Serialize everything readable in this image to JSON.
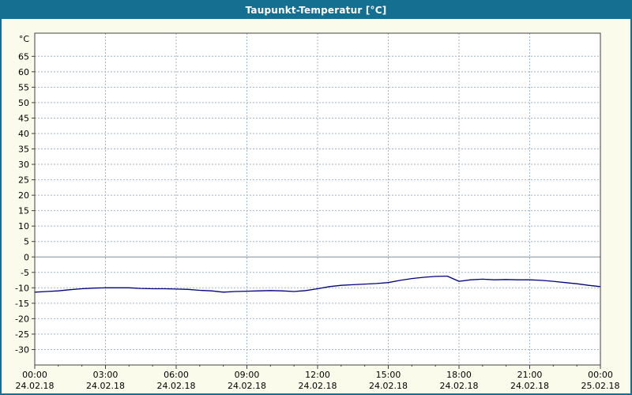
{
  "title": "Taupunkt-Temperatur [°C]",
  "colors": {
    "titlebar": "#156f91",
    "titlebar_text": "#ffffff",
    "window_background": "#fbfbec",
    "plot_background": "#ffffff",
    "grid": "#a3b4c2",
    "zero_line": "#7d8d99",
    "axis": "#404040",
    "series_line": "#000080",
    "label_text": "#000000"
  },
  "chart_data": {
    "type": "line",
    "title": "Taupunkt-Temperatur [°C]",
    "ylabel": "°C",
    "ylim": [
      -35,
      72.5
    ],
    "ytick_step": 5,
    "yticks": [
      65,
      60,
      55,
      50,
      45,
      40,
      35,
      30,
      25,
      20,
      15,
      10,
      5,
      0,
      -5,
      -10,
      -15,
      -20,
      -25,
      -30
    ],
    "grid": "dashed",
    "legend_position": "none",
    "x_hours_range": [
      0,
      24
    ],
    "xticks": [
      {
        "hour": 0,
        "time": "00:00",
        "date": "24.02.18"
      },
      {
        "hour": 3,
        "time": "03:00",
        "date": "24.02.18"
      },
      {
        "hour": 6,
        "time": "06:00",
        "date": "24.02.18"
      },
      {
        "hour": 9,
        "time": "09:00",
        "date": "24.02.18"
      },
      {
        "hour": 12,
        "time": "12:00",
        "date": "24.02.18"
      },
      {
        "hour": 15,
        "time": "15:00",
        "date": "24.02.18"
      },
      {
        "hour": 18,
        "time": "18:00",
        "date": "24.02.18"
      },
      {
        "hour": 21,
        "time": "21:00",
        "date": "24.02.18"
      },
      {
        "hour": 24,
        "time": "00:00",
        "date": "25.02.18"
      }
    ],
    "series": [
      {
        "name": "Taupunkt-Temperatur",
        "color": "#000080",
        "x": [
          0,
          0.5,
          1,
          1.5,
          2,
          2.5,
          3,
          3.5,
          4,
          4.5,
          5,
          5.5,
          6,
          6.5,
          7,
          7.5,
          8,
          8.5,
          9,
          9.5,
          10,
          10.5,
          11,
          11.5,
          12,
          12.5,
          13,
          13.5,
          14,
          14.5,
          15,
          15.5,
          16,
          16.5,
          17,
          17.5,
          18,
          18.5,
          19,
          19.5,
          20,
          20.5,
          21,
          21.5,
          22,
          22.5,
          23,
          23.5,
          24
        ],
        "y": [
          -11.4,
          -11.2,
          -11.0,
          -10.6,
          -10.3,
          -10.1,
          -10.0,
          -10.0,
          -10.0,
          -10.2,
          -10.3,
          -10.3,
          -10.4,
          -10.5,
          -10.8,
          -11.0,
          -11.4,
          -11.2,
          -11.1,
          -11.0,
          -10.9,
          -11.0,
          -11.2,
          -10.9,
          -10.3,
          -9.6,
          -9.2,
          -9.0,
          -8.8,
          -8.6,
          -8.3,
          -7.6,
          -7.0,
          -6.6,
          -6.3,
          -6.2,
          -7.9,
          -7.4,
          -7.2,
          -7.4,
          -7.3,
          -7.4,
          -7.4,
          -7.6,
          -7.9,
          -8.3,
          -8.7,
          -9.2,
          -9.6
        ]
      }
    ]
  }
}
